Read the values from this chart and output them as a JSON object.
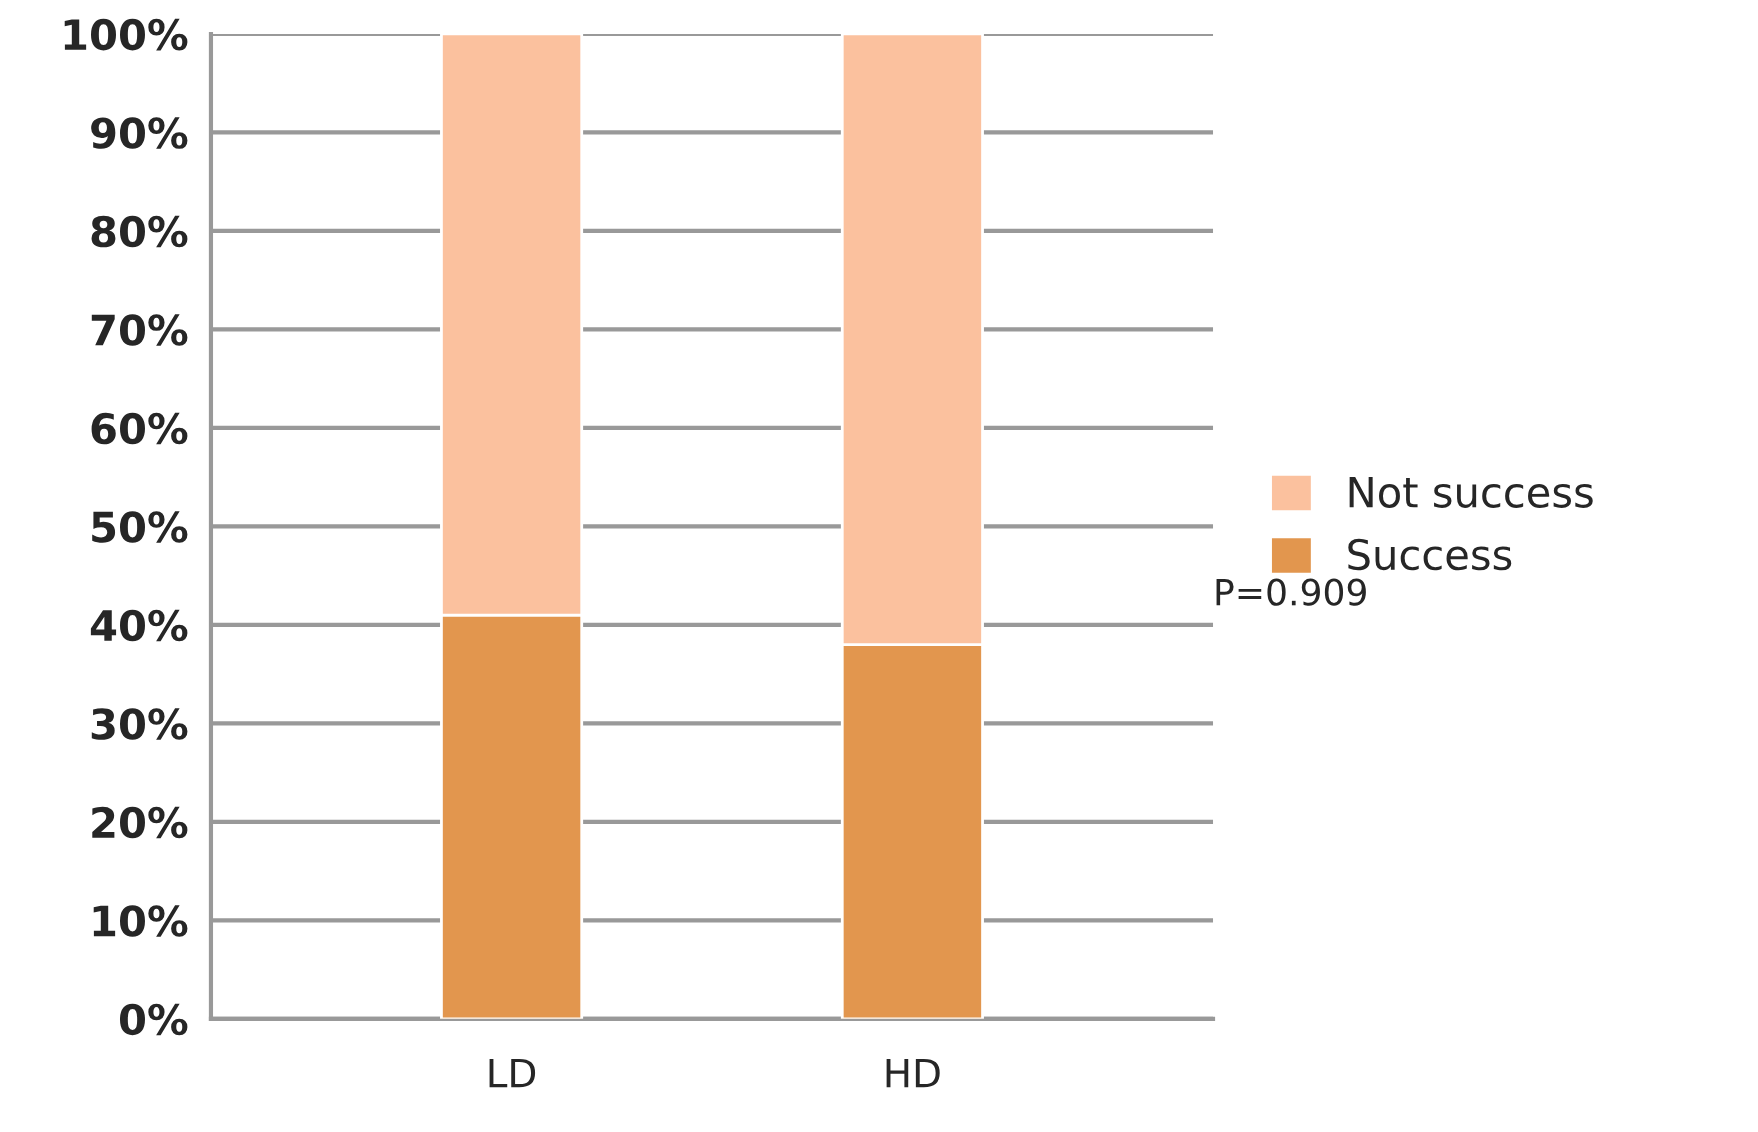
{
  "chart_data": {
    "type": "bar",
    "stacked": true,
    "categories": [
      "LD",
      "HD"
    ],
    "series": [
      {
        "name": "Success",
        "color": "#e2964e",
        "values": [
          41,
          38
        ]
      },
      {
        "name": "Not success",
        "color": "#fbc19e",
        "values": [
          59,
          62
        ]
      }
    ],
    "ylim": [
      0,
      100
    ],
    "yticks": [
      {
        "value": 0,
        "label": "0%"
      },
      {
        "value": 10,
        "label": "10%"
      },
      {
        "value": 20,
        "label": "20%"
      },
      {
        "value": 30,
        "label": "30%"
      },
      {
        "value": 40,
        "label": "40%"
      },
      {
        "value": 50,
        "label": "50%"
      },
      {
        "value": 60,
        "label": "60%"
      },
      {
        "value": 70,
        "label": "70%"
      },
      {
        "value": 80,
        "label": "80%"
      },
      {
        "value": 90,
        "label": "90%"
      },
      {
        "value": 100,
        "label": "100%"
      }
    ],
    "grid": "y",
    "legend": "right",
    "annotations": [
      "P=0.909"
    ]
  }
}
